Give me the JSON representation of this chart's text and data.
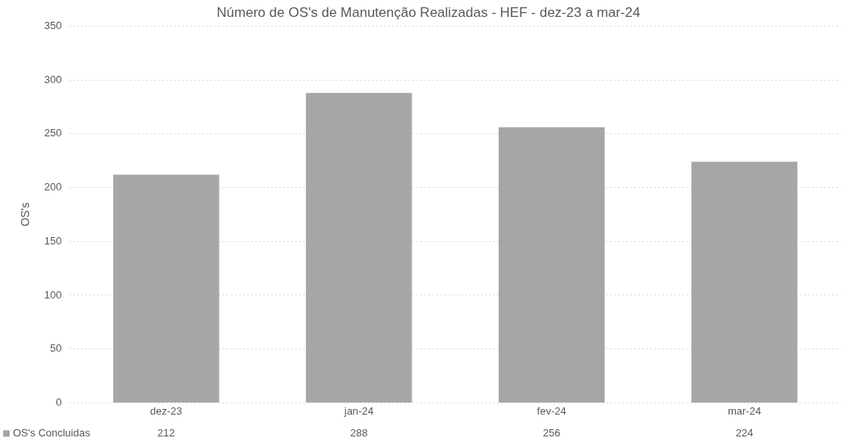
{
  "chart_data": {
    "type": "bar",
    "title": "Número de OS's de Manutenção Realizadas - HEF - dez-23 a mar-24",
    "ylabel": "OS's",
    "categories": [
      "dez-23",
      "jan-24",
      "fev-24",
      "mar-24"
    ],
    "series": [
      {
        "name": "OS's Concluidas",
        "color": "#a6a6a6",
        "values": [
          212,
          288,
          256,
          224
        ]
      }
    ],
    "ylim": [
      0,
      350
    ],
    "yticks": [
      0,
      50,
      100,
      150,
      200,
      250,
      300,
      350
    ],
    "grid": "y",
    "legend": "bottom left",
    "data_labels": true
  }
}
